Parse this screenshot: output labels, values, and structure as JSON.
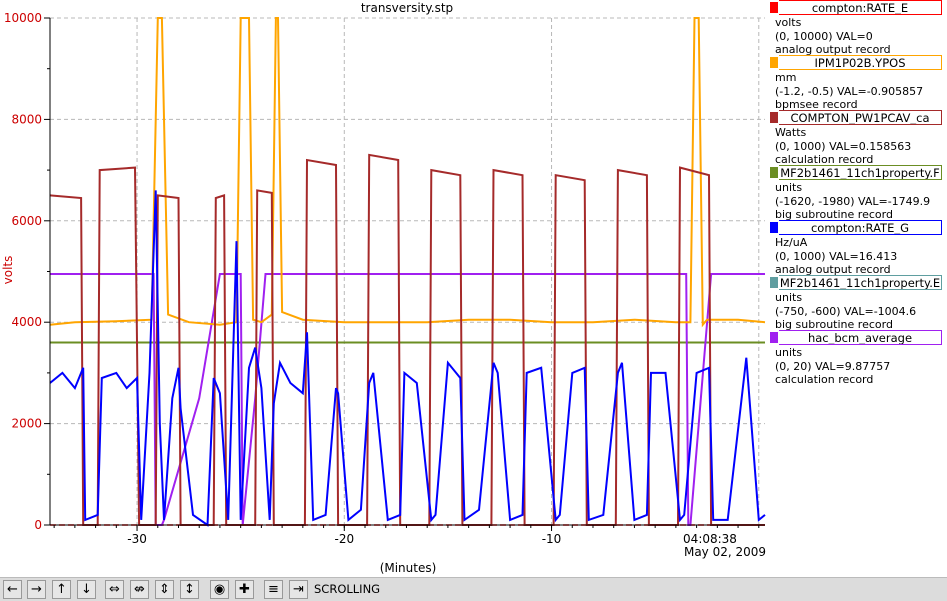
{
  "chart_data": {
    "type": "line",
    "title": "transversity.stp",
    "xlabel": "(Minutes)",
    "ylabel": "volts",
    "ylim": [
      0,
      10000
    ],
    "xlim": [
      -34.2,
      0.3
    ],
    "yticks": [
      "10000",
      "8000",
      "6000",
      "4000",
      "2000",
      "0"
    ],
    "xticks": [
      "-30",
      "-20",
      "-10"
    ],
    "time_label": "04:08:38",
    "date_label": "May 02, 2009",
    "grid": true,
    "legend_placement": "right",
    "series": [
      {
        "name": "compton:RATE_E",
        "color": "#ff0000",
        "lines": [
          "volts",
          "(0, 10000)  VAL=0",
          "analog output record"
        ],
        "x": [
          -34.2,
          0.3
        ],
        "y": [
          0,
          0
        ]
      },
      {
        "name": "IPM1P02B.YPOS",
        "color": "#ffa500",
        "lines": [
          "mm",
          "(-1.2, -0.5) VAL=-0.905857",
          "bpmsee record"
        ],
        "x": [
          -34.2,
          -33.0,
          -31.0,
          -29.3,
          -29.0,
          -28.8,
          -28.5,
          -27.5,
          -26.0,
          -25.2,
          -25.0,
          -24.8,
          -24.6,
          -24.4,
          -24.0,
          -23.5,
          -23.3,
          -23.2,
          -23.0,
          -22.0,
          -20.0,
          -18.0,
          -16.0,
          -14.0,
          -12.0,
          -10.0,
          -8.0,
          -6.0,
          -4.0,
          -3.3,
          -3.1,
          -2.9,
          -2.7,
          -2.5,
          -1.0,
          0.3
        ],
        "y": [
          3950,
          4000,
          4020,
          4050,
          10000,
          10000,
          4150,
          4000,
          3950,
          4000,
          10000,
          10000,
          10000,
          4050,
          4000,
          4150,
          10000,
          10000,
          4200,
          4050,
          4000,
          4000,
          4000,
          4050,
          4050,
          4000,
          4000,
          4050,
          4000,
          4000,
          10000,
          10000,
          3950,
          4050,
          4050,
          4000
        ]
      },
      {
        "name": "COMPTON_PW1PCAV_ca",
        "color": "#a52a2a",
        "lines": [
          "Watts",
          "(0, 1000) VAL=0.158563",
          "calculation record"
        ],
        "x": [
          -34.2,
          -32.7,
          -32.6,
          -31.9,
          -31.8,
          -30.1,
          -29.9,
          -29.1,
          -29.0,
          -28.0,
          -27.9,
          -26.3,
          -26.2,
          -25.8,
          -25.7,
          -24.3,
          -24.2,
          -23.5,
          -23.4,
          -21.9,
          -21.8,
          -20.4,
          -20.3,
          -18.9,
          -18.8,
          -17.4,
          -17.3,
          -15.9,
          -15.8,
          -14.4,
          -14.3,
          -12.9,
          -12.8,
          -11.4,
          -11.3,
          -9.9,
          -9.8,
          -8.4,
          -8.3,
          -6.9,
          -6.8,
          -5.4,
          -5.3,
          -3.9,
          -3.8,
          -2.4,
          -2.3,
          -0.5,
          0.3
        ],
        "y": [
          6500,
          6450,
          0,
          0,
          7000,
          7050,
          0,
          0,
          6500,
          6450,
          0,
          0,
          6450,
          6500,
          0,
          0,
          6600,
          6550,
          0,
          0,
          7200,
          7100,
          0,
          0,
          7300,
          7200,
          0,
          0,
          7000,
          6900,
          0,
          0,
          7000,
          6900,
          0,
          0,
          6900,
          6800,
          0,
          0,
          7000,
          6900,
          0,
          0,
          7050,
          6900,
          0,
          0,
          0
        ]
      },
      {
        "name": "MF2b1461_11ch1property.F",
        "color": "#6b8e23",
        "lines": [
          "units",
          "(-1620, -1980) VAL=-1749.9",
          "big subroutine record"
        ],
        "x": [
          -34.2,
          0.3
        ],
        "y": [
          3600,
          3600
        ]
      },
      {
        "name": "compton:RATE_G",
        "color": "#0000ff",
        "lines": [
          "Hz/uA",
          "(0, 1000) VAL=16.413",
          "analog output record"
        ],
        "x": [
          -34.2,
          -33.6,
          -33.0,
          -32.6,
          -32.5,
          -31.9,
          -31.7,
          -31.0,
          -30.5,
          -30.0,
          -29.8,
          -29.4,
          -29.1,
          -28.9,
          -28.7,
          -28.3,
          -28.0,
          -27.9,
          -27.3,
          -26.6,
          -26.3,
          -26.0,
          -25.6,
          -25.2,
          -25.0,
          -24.6,
          -24.3,
          -24.0,
          -23.6,
          -23.4,
          -23.1,
          -22.6,
          -22.0,
          -21.8,
          -21.5,
          -20.9,
          -20.4,
          -20.3,
          -19.8,
          -19.2,
          -18.8,
          -18.6,
          -17.9,
          -17.3,
          -17.1,
          -16.5,
          -15.8,
          -15.6,
          -15.0,
          -14.4,
          -14.2,
          -13.5,
          -12.8,
          -12.6,
          -12.0,
          -11.4,
          -11.2,
          -10.5,
          -9.8,
          -9.6,
          -9.0,
          -8.4,
          -8.2,
          -7.5,
          -6.8,
          -6.6,
          -6.0,
          -5.4,
          -5.2,
          -4.5,
          -3.8,
          -3.6,
          -3.0,
          -2.4,
          -2.2,
          -1.5,
          -0.6,
          0.0,
          0.3
        ],
        "y": [
          2800,
          3000,
          2700,
          3100,
          100,
          200,
          2900,
          3000,
          2700,
          2900,
          100,
          3000,
          6600,
          2000,
          100,
          2500,
          3100,
          2300,
          200,
          0,
          2900,
          2600,
          100,
          5600,
          100,
          3100,
          3500,
          2700,
          100,
          2400,
          3200,
          2800,
          2600,
          3800,
          100,
          200,
          2700,
          2600,
          100,
          300,
          2800,
          3000,
          100,
          200,
          3000,
          2800,
          100,
          200,
          3200,
          2900,
          100,
          300,
          3200,
          3000,
          100,
          200,
          3000,
          3100,
          100,
          200,
          3000,
          3100,
          100,
          200,
          3000,
          3200,
          100,
          200,
          3000,
          3000,
          100,
          200,
          3000,
          3100,
          100,
          100,
          3300,
          100,
          200
        ]
      },
      {
        "name": "MF2b1461_11ch1property.E",
        "color": "#5f9ea0",
        "lines": [
          "units",
          "(-750, -600) VAL=-1004.6",
          "big subroutine record"
        ],
        "x": [],
        "y": []
      },
      {
        "name": "hac_bcm_average",
        "color": "#a020f0",
        "lines": [
          "units",
          "(0, 20) VAL=9.87757",
          "calculation record"
        ],
        "x": [
          -34.2,
          -30.0,
          -29.2,
          -29.1,
          -28.8,
          -28.7,
          -27.0,
          -26.0,
          -25.2,
          -25.0,
          -24.9,
          -24.3,
          -23.8,
          -23.5,
          -20.0,
          -10.0,
          -3.5,
          -3.4,
          -3.3,
          -2.3,
          0.3
        ],
        "y": [
          4950,
          4950,
          4950,
          0,
          0,
          100,
          2500,
          4950,
          4950,
          4950,
          0,
          2500,
          4950,
          4950,
          4950,
          4950,
          4950,
          0,
          0,
          4950,
          4950
        ]
      }
    ]
  },
  "toolbar": {
    "icons": [
      "arrow-left-icon",
      "arrow-right-icon",
      "arrow-up-icon",
      "arrow-down-icon",
      "expand-horizontal-icon",
      "compress-horizontal-icon",
      "expand-vertical-icon",
      "compress-vertical-icon",
      "circle-icon",
      "plus-icon",
      "autoscale-icon",
      "skip-icon"
    ],
    "status_label": "SCROLLING"
  }
}
